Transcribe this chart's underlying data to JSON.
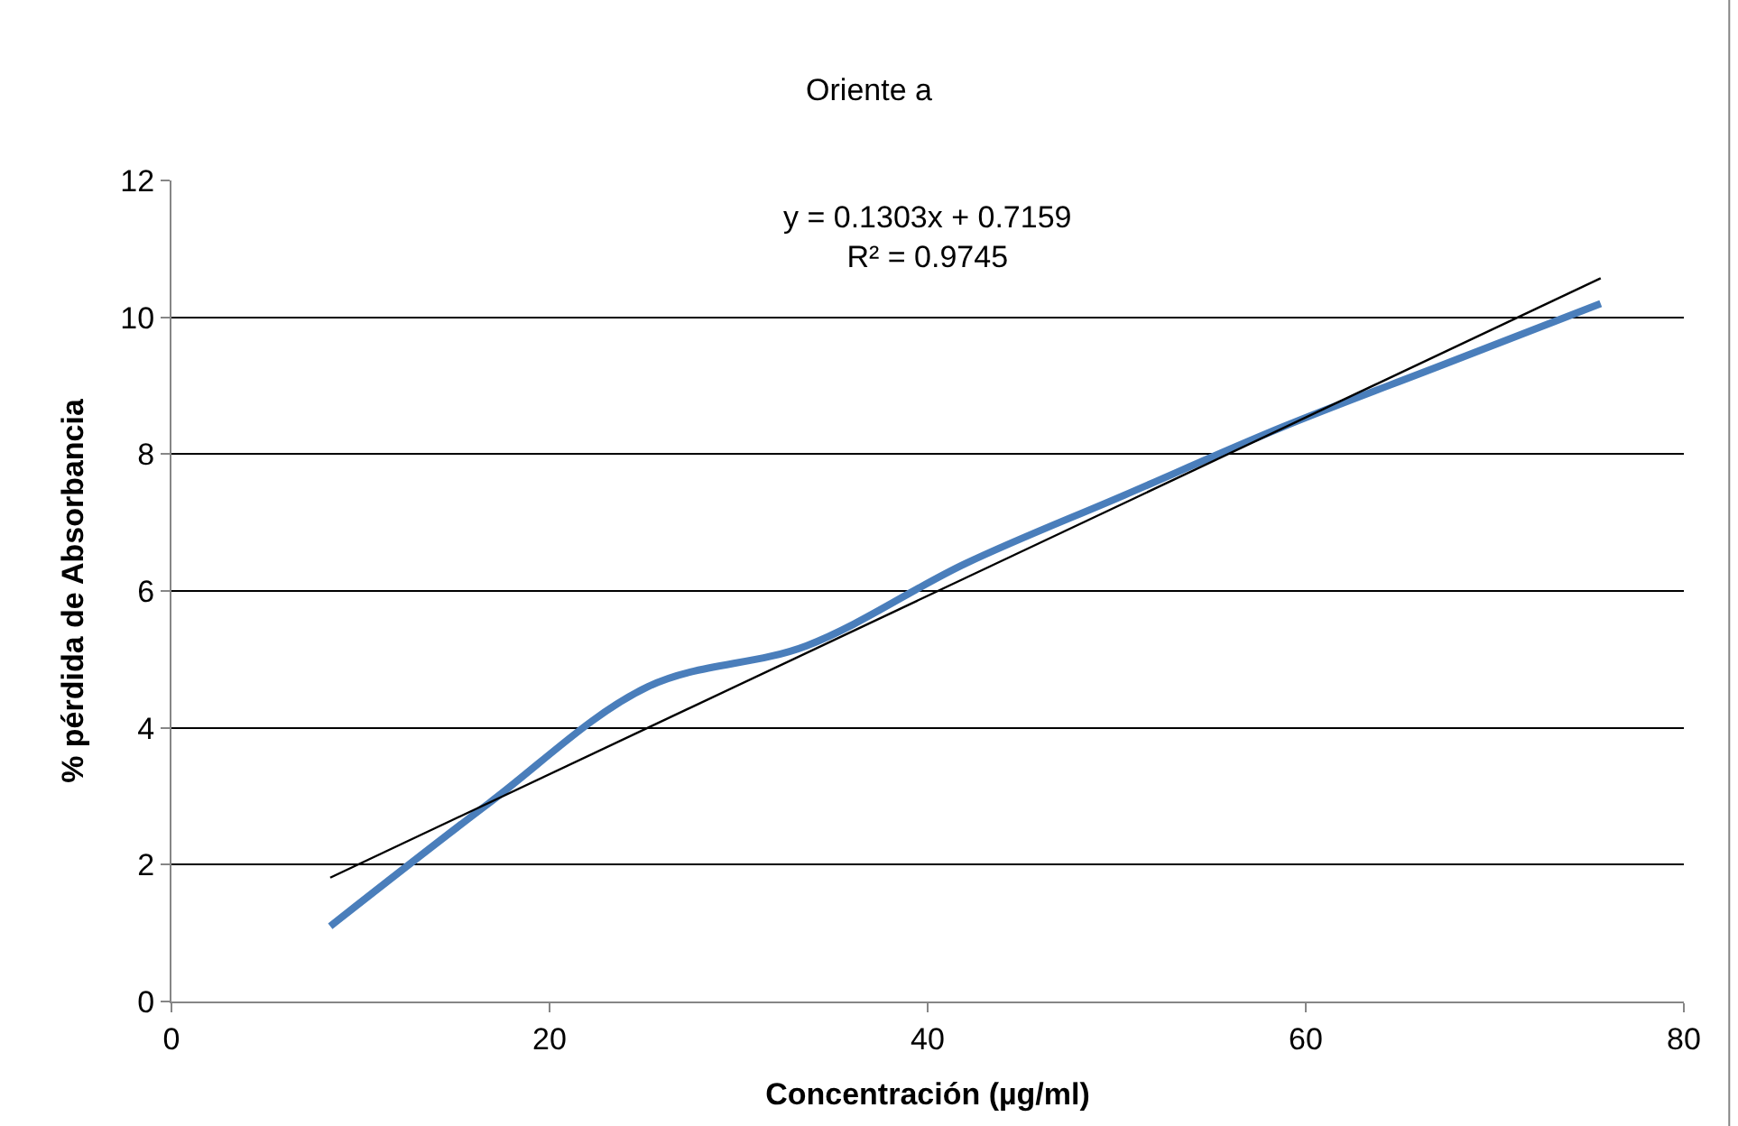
{
  "chart_data": {
    "type": "line",
    "title": "Oriente a",
    "xlabel": "Concentración (µg/ml)",
    "ylabel": "% pérdida de Absorbancia",
    "x": [
      8.4,
      16.8,
      25.2,
      33.6,
      42,
      50.4,
      58.8,
      67.2,
      75.6
    ],
    "series": [
      {
        "color": "#4a7ebb",
        "values": [
          1.1,
          2.9,
          4.6,
          5.2,
          6.4,
          7.4,
          8.4,
          9.3,
          10.2
        ]
      },
      {
        "color": "#000000",
        "x": [
          8.4,
          75.6
        ],
        "values": [
          1.81,
          10.57
        ]
      }
    ],
    "annotations": [
      "y = 0.1303x + 0.7159\nR² = 0.9745"
    ],
    "xlim": [
      0,
      80
    ],
    "xticks": [
      0,
      20,
      40,
      60,
      80
    ],
    "ylim": [
      0,
      12
    ],
    "yticks": [
      0,
      2,
      4,
      6,
      8,
      10,
      12
    ],
    "grid": "y",
    "marker": "none"
  }
}
